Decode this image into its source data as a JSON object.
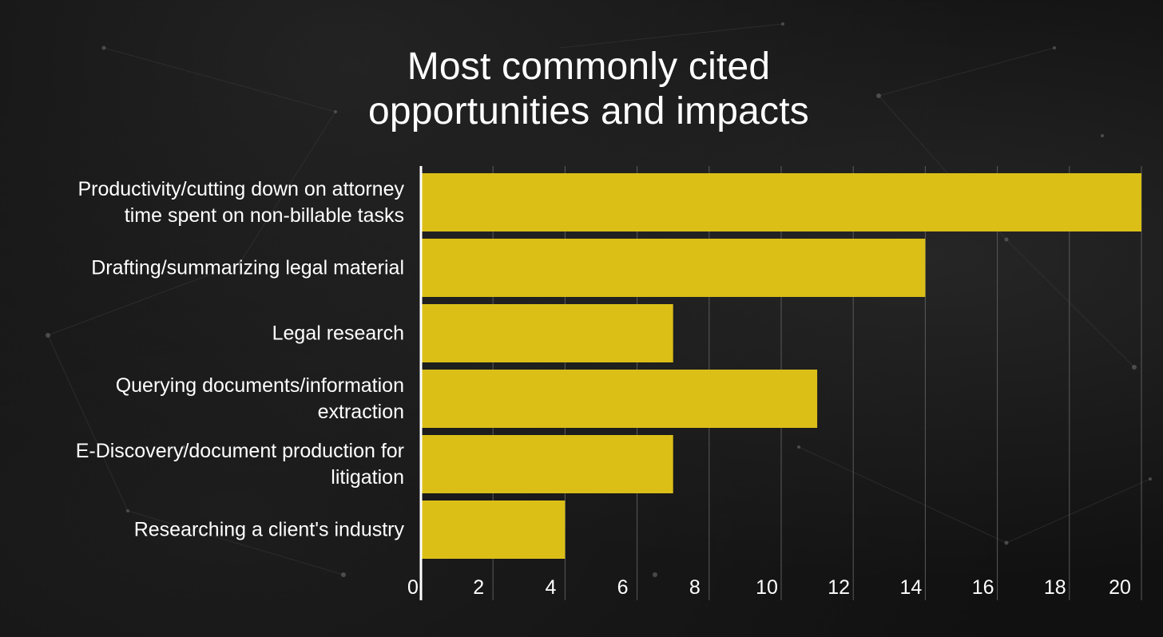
{
  "chart_data": {
    "type": "bar",
    "orientation": "horizontal",
    "title_lines": [
      "Most commonly cited",
      "opportunities and impacts"
    ],
    "categories": [
      [
        "Productivity/cutting down on attorney",
        "time spent on non-billable tasks"
      ],
      [
        "Drafting/summarizing legal material"
      ],
      [
        "Legal research"
      ],
      [
        "Querying documents/information",
        "extraction"
      ],
      [
        "E-Discovery/document production for",
        "litigation"
      ],
      [
        "Researching a client's industry"
      ]
    ],
    "values": [
      20,
      14,
      7,
      11,
      7,
      4
    ],
    "xlim": [
      0,
      20
    ],
    "xticks": [
      0,
      2,
      4,
      6,
      8,
      10,
      12,
      14,
      16,
      18,
      20
    ],
    "grid": "vertical",
    "bar_color": "#dbbf17"
  },
  "colors": {
    "background": "#111111",
    "text": "#ffffff",
    "bar": "#dbbf17",
    "gridline": "#5a5a5a",
    "axis": "#ffffff"
  }
}
